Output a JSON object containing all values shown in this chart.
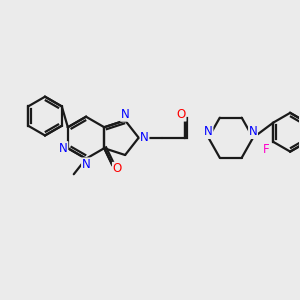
{
  "bg_color": "#ebebeb",
  "bond_color": "#1a1a1a",
  "N_color": "#0000ff",
  "O_color": "#ff0000",
  "F_color": "#ff00cc",
  "line_width": 1.6,
  "font_size": 8.5,
  "fig_size": [
    3.0,
    3.0
  ],
  "dpi": 100,
  "xlim": [
    -4.2,
    5.0
  ],
  "ylim": [
    -2.5,
    2.5
  ]
}
